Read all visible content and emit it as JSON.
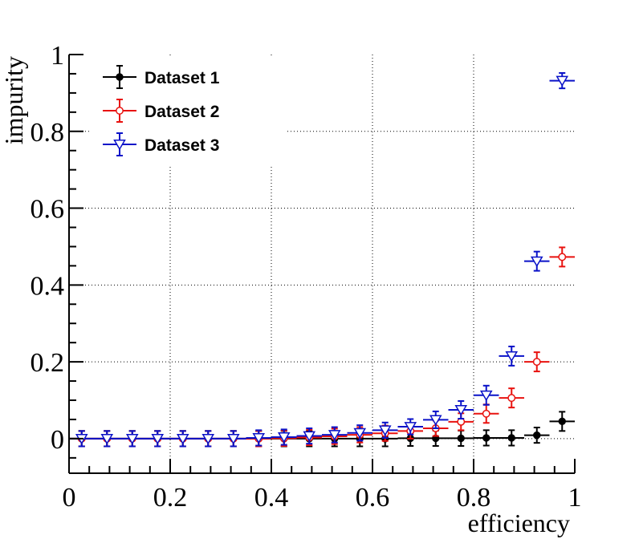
{
  "chart_data": {
    "type": "scatter",
    "xlabel": "efficiency",
    "ylabel": "impurity",
    "xlim": [
      0,
      1
    ],
    "ylim": [
      -0.09,
      1
    ],
    "grid": true,
    "legend_position": "top-left",
    "x_ticks": [
      0,
      0.2,
      0.4,
      0.6,
      0.8,
      1
    ],
    "x_tick_labels": [
      "0",
      "0.2",
      "0.4",
      "0.6",
      "0.8",
      "1"
    ],
    "y_ticks": [
      0,
      0.2,
      0.4,
      0.6,
      0.8,
      1
    ],
    "y_tick_labels": [
      "0",
      "0.2",
      "0.4",
      "0.6",
      "0.8",
      "1"
    ],
    "x": [
      0.025,
      0.075,
      0.125,
      0.175,
      0.225,
      0.275,
      0.325,
      0.375,
      0.425,
      0.475,
      0.525,
      0.575,
      0.625,
      0.675,
      0.725,
      0.775,
      0.825,
      0.875,
      0.925,
      0.975
    ],
    "x_error": 0.025,
    "series": [
      {
        "name": "Dataset 1",
        "color": "#000000",
        "marker": "filled-circle",
        "values": [
          0,
          0,
          0,
          0,
          0,
          0,
          0,
          0,
          0,
          0,
          0,
          0,
          0,
          0.001,
          0.001,
          0.001,
          0.002,
          0.002,
          0.009,
          0.045
        ],
        "errors": [
          0.02,
          0.02,
          0.02,
          0.02,
          0.02,
          0.02,
          0.02,
          0.02,
          0.02,
          0.02,
          0.02,
          0.02,
          0.02,
          0.02,
          0.02,
          0.02,
          0.02,
          0.02,
          0.02,
          0.025
        ]
      },
      {
        "name": "Dataset 2",
        "color": "#e8120f",
        "marker": "open-circle",
        "values": [
          0,
          0,
          0,
          0,
          0,
          0,
          0,
          0,
          0.001,
          0.003,
          0.006,
          0.01,
          0.014,
          0.02,
          0.027,
          0.044,
          0.065,
          0.106,
          0.2,
          0.473
        ],
        "errors": [
          0.02,
          0.02,
          0.02,
          0.02,
          0.02,
          0.02,
          0.02,
          0.02,
          0.02,
          0.02,
          0.02,
          0.02,
          0.02,
          0.02,
          0.02,
          0.022,
          0.024,
          0.025,
          0.025,
          0.025
        ]
      },
      {
        "name": "Dataset 3",
        "color": "#0a12c8",
        "marker": "open-triangle-down",
        "values": [
          0,
          0,
          0,
          0,
          0,
          0,
          0,
          0.002,
          0.004,
          0.007,
          0.01,
          0.015,
          0.022,
          0.031,
          0.049,
          0.075,
          0.113,
          0.215,
          0.462,
          0.932
        ],
        "errors": [
          0.02,
          0.02,
          0.02,
          0.02,
          0.02,
          0.02,
          0.02,
          0.02,
          0.02,
          0.02,
          0.02,
          0.02,
          0.02,
          0.02,
          0.022,
          0.023,
          0.025,
          0.025,
          0.025,
          0.02
        ]
      }
    ]
  }
}
